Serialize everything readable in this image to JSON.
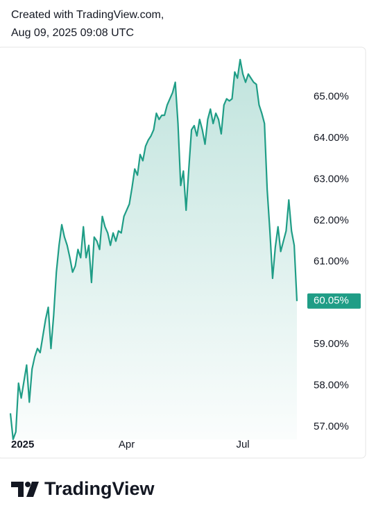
{
  "header": {
    "line1": "Created with TradingView.com,",
    "line2": "Aug 09, 2025 09:08 UTC"
  },
  "chart_data": {
    "type": "area",
    "color": "#1f9d86",
    "categories": [
      "2025",
      null,
      null,
      null,
      null,
      null,
      null,
      null,
      null,
      null,
      null,
      null,
      null,
      null,
      null,
      null,
      null,
      null,
      null,
      null,
      null,
      null,
      null,
      null,
      null,
      null,
      null,
      null,
      null,
      null,
      null,
      null,
      null,
      null,
      null,
      null,
      null,
      null,
      null,
      null,
      null,
      null,
      null,
      "Apr",
      null,
      null,
      null,
      null,
      null,
      null,
      null,
      null,
      null,
      null,
      null,
      null,
      null,
      null,
      null,
      null,
      null,
      null,
      null,
      null,
      null,
      null,
      null,
      null,
      null,
      null,
      null,
      null,
      null,
      null,
      null,
      null,
      null,
      null,
      null,
      null,
      null,
      null,
      null,
      null,
      null,
      null,
      "Jul",
      null,
      null,
      null,
      null,
      null,
      null,
      null,
      null,
      null,
      null,
      null,
      null,
      null,
      null,
      null,
      null,
      null,
      null,
      null,
      null
    ],
    "values": [
      57.33,
      56.7,
      56.88,
      58.06,
      57.7,
      58.1,
      58.5,
      57.6,
      58.4,
      58.7,
      58.9,
      58.8,
      59.2,
      59.6,
      59.9,
      58.9,
      59.7,
      60.75,
      61.4,
      61.9,
      61.6,
      61.4,
      61.1,
      60.75,
      60.9,
      61.3,
      61.1,
      61.85,
      61.1,
      61.4,
      60.5,
      61.6,
      61.5,
      61.3,
      62.1,
      61.85,
      61.7,
      61.4,
      61.7,
      61.5,
      61.75,
      61.7,
      62.1,
      62.25,
      62.4,
      62.8,
      63.25,
      63.1,
      63.6,
      63.45,
      63.8,
      63.95,
      64.05,
      64.2,
      64.6,
      64.45,
      64.55,
      64.55,
      64.8,
      64.95,
      65.1,
      65.35,
      64.35,
      62.85,
      63.2,
      62.25,
      63.25,
      64.2,
      64.3,
      64.05,
      64.45,
      64.2,
      63.85,
      64.45,
      64.7,
      64.35,
      64.6,
      64.45,
      64.1,
      64.8,
      64.95,
      64.9,
      64.95,
      65.6,
      65.45,
      65.9,
      65.55,
      65.35,
      65.55,
      65.45,
      65.35,
      65.3,
      64.8,
      64.6,
      64.35,
      62.75,
      61.75,
      60.6,
      61.35,
      61.85,
      61.25,
      61.5,
      61.75,
      62.5,
      61.75,
      61.4,
      60.05
    ],
    "value_labels": [
      null,
      null,
      null,
      null,
      null,
      null,
      null,
      null,
      null,
      null,
      null,
      null,
      null,
      null,
      null,
      null,
      null,
      null,
      null,
      null,
      null,
      null,
      null,
      null,
      null,
      null,
      null,
      null,
      null,
      null,
      null,
      null,
      null,
      null,
      null,
      null,
      null,
      null,
      null,
      null,
      null,
      null,
      null,
      null,
      null,
      null,
      null,
      null,
      null,
      null,
      null,
      null,
      null,
      null,
      null,
      null,
      null,
      null,
      null,
      null,
      null,
      null,
      null,
      null,
      null,
      null,
      null,
      null,
      null,
      null,
      null,
      null,
      null,
      null,
      null,
      null,
      null,
      null,
      null,
      null,
      null,
      null,
      null,
      null,
      null,
      null,
      null,
      null,
      null,
      null,
      null,
      null,
      null,
      null,
      null,
      null,
      null,
      null,
      null,
      null,
      null,
      null,
      null,
      null,
      null,
      null,
      "60.05%"
    ],
    "ylim": [
      56.7,
      66.2
    ],
    "yticks": [
      {
        "value": 57,
        "label": "57.00%"
      },
      {
        "value": 58,
        "label": "58.00%"
      },
      {
        "value": 59,
        "label": "59.00%"
      },
      {
        "value": 61,
        "label": "61.00%"
      },
      {
        "value": 62,
        "label": "62.00%"
      },
      {
        "value": 63,
        "label": "63.00%"
      },
      {
        "value": 64,
        "label": "64.00%"
      },
      {
        "value": 65,
        "label": "65.00%"
      }
    ]
  },
  "footer": {
    "brand": "TradingView"
  }
}
